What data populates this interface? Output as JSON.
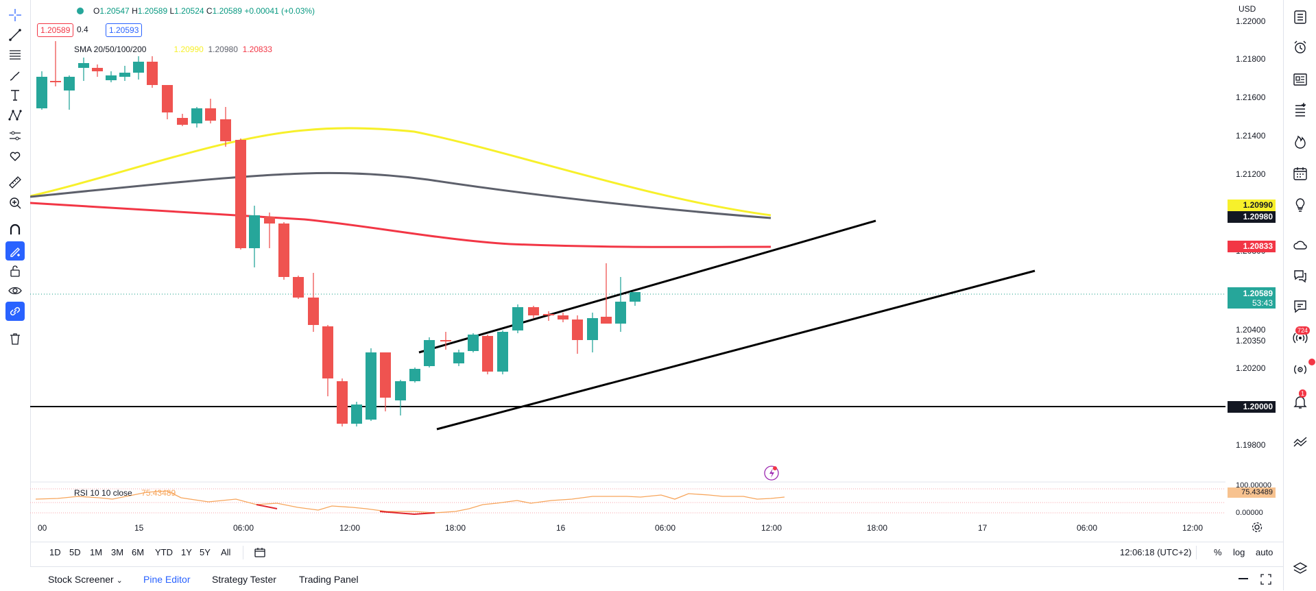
{
  "legend": {
    "open_label": "O",
    "open": "1.20547",
    "high_label": "H",
    "high": "1.20589",
    "low_label": "L",
    "low": "1.20524",
    "close_label": "C",
    "close": "1.20589",
    "change": "+0.00041 (+0.03%)",
    "bid": "1.20589",
    "spread": "0.4",
    "ask": "1.20593"
  },
  "sma": {
    "label": "SMA 20/50/100/200",
    "v20": "1.20990",
    "v50": "1.20980",
    "v100": "1.20833",
    "color20": "#f7f02b",
    "color50": "#5d606b",
    "color100": "#f23645"
  },
  "rsi": {
    "label": "RSI 10 10 close",
    "value": "75.43489"
  },
  "price_scale": {
    "currency": "USD",
    "ticks": [
      "1.22000",
      "1.21800",
      "1.21600",
      "1.21400",
      "1.21200",
      "1.20800",
      "1.20400",
      "1.20350",
      "1.20200",
      "1.19800"
    ],
    "labels": {
      "sma20": "1.20990",
      "sma50": "1.20980",
      "sma100": "1.20833",
      "last": "1.20589",
      "countdown": "53:43",
      "level": "1.20000"
    },
    "rsi_ticks": {
      "top": "100.00000",
      "value": "75.43489",
      "bottom": "0.00000"
    }
  },
  "time_scale": [
    "00",
    "15",
    "06:00",
    "12:00",
    "18:00",
    "16",
    "06:00",
    "12:00",
    "18:00",
    "17",
    "06:00",
    "12:00"
  ],
  "range_bar": {
    "ranges": [
      "1D",
      "5D",
      "1M",
      "3M",
      "6M",
      "YTD",
      "1Y",
      "5Y",
      "All"
    ],
    "clock": "12:06:18 (UTC+2)",
    "percent": "%",
    "log": "log",
    "auto": "auto"
  },
  "bottom_panel": {
    "tabs": [
      "Stock Screener",
      "Pine Editor",
      "Strategy Tester",
      "Trading Panel"
    ],
    "active_tab": "Pine Editor"
  },
  "badges": {
    "ideas": "724",
    "alerts": "1"
  },
  "colors": {
    "bull": "#26a69a",
    "bear": "#ef5350",
    "accent": "#2962ff"
  },
  "icons": {
    "left": [
      "crosshair-icon",
      "trend-line-icon",
      "fib-icon",
      "brush-icon",
      "text-icon",
      "pattern-icon",
      "forecast-icon",
      "heart-icon",
      "ruler-icon",
      "zoom-icon",
      "magnet-icon",
      "lock-drawing-icon",
      "lock-icon",
      "eye-icon",
      "link-icon",
      "trash-icon"
    ],
    "right": [
      "watchlist-icon",
      "alarm-clock-icon",
      "news-icon",
      "add-list-icon",
      "fire-icon",
      "calendar-icon",
      "lightbulb-icon",
      "cloud-icon",
      "chat-icon",
      "messages-icon",
      "streams-icon",
      "play-icon",
      "bell-icon",
      "chart-icon",
      "layers-icon"
    ]
  }
}
